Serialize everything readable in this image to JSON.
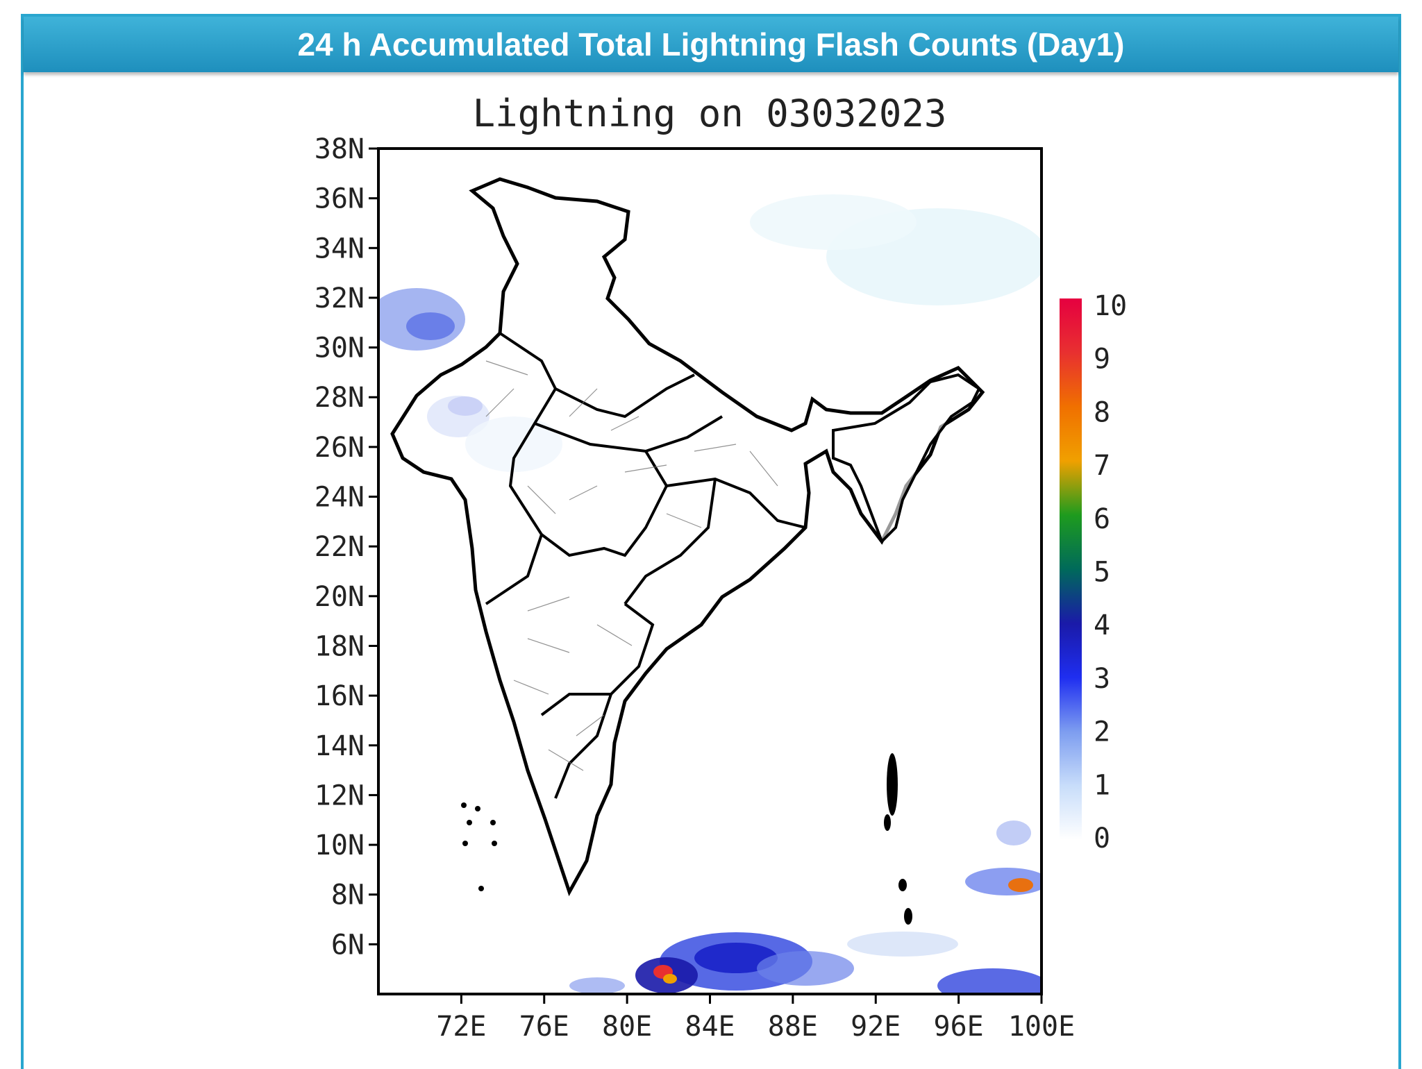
{
  "banner": {
    "title": "24 h Accumulated Total Lightning Flash Counts (Day1)"
  },
  "map": {
    "title": "Lightning on 03032023",
    "lat_labels": [
      "38N",
      "36N",
      "34N",
      "32N",
      "30N",
      "28N",
      "26N",
      "24N",
      "22N",
      "20N",
      "18N",
      "16N",
      "14N",
      "12N",
      "10N",
      "8N",
      "6N"
    ],
    "lon_labels": [
      "72E",
      "76E",
      "80E",
      "84E",
      "88E",
      "92E",
      "96E",
      "100E"
    ],
    "extent": {
      "lon": [
        68,
        100
      ],
      "lat": [
        4,
        38
      ]
    },
    "region_name": "India"
  },
  "colorbar": {
    "labels": [
      "10",
      "9",
      "8",
      "7",
      "6",
      "5",
      "4",
      "3",
      "2",
      "1",
      "0"
    ],
    "colors": [
      "#ffffff",
      "#c8ddfa",
      "#7d9df0",
      "#1f2ef0",
      "#1a1aa8",
      "#006a5a",
      "#1e9b1e",
      "#f0a000",
      "#f07000",
      "#e83030",
      "#e60040"
    ]
  }
}
